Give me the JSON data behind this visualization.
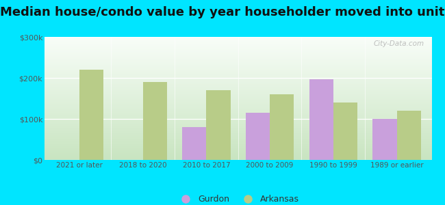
{
  "title": "Median house/condo value by year householder moved into unit",
  "categories": [
    "2021 or later",
    "2018 to 2020",
    "2010 to 2017",
    "2000 to 2009",
    "1990 to 1999",
    "1989 or earlier"
  ],
  "gurdon_values": [
    null,
    null,
    80000,
    115000,
    197000,
    100000
  ],
  "arkansas_values": [
    220000,
    190000,
    170000,
    160000,
    140000,
    120000
  ],
  "gurdon_color": "#c9a0dc",
  "arkansas_color": "#b8cc88",
  "background_outer": "#00e5ff",
  "background_top": "#f0faf0",
  "background_bottom": "#c8e8c0",
  "ylim": [
    0,
    300000
  ],
  "yticks": [
    0,
    100000,
    200000,
    300000
  ],
  "ytick_labels": [
    "$0",
    "$100k",
    "$200k",
    "$300k"
  ],
  "title_fontsize": 13,
  "bar_width": 0.38,
  "legend_labels": [
    "Gurdon",
    "Arkansas"
  ],
  "watermark": "City-Data.com"
}
